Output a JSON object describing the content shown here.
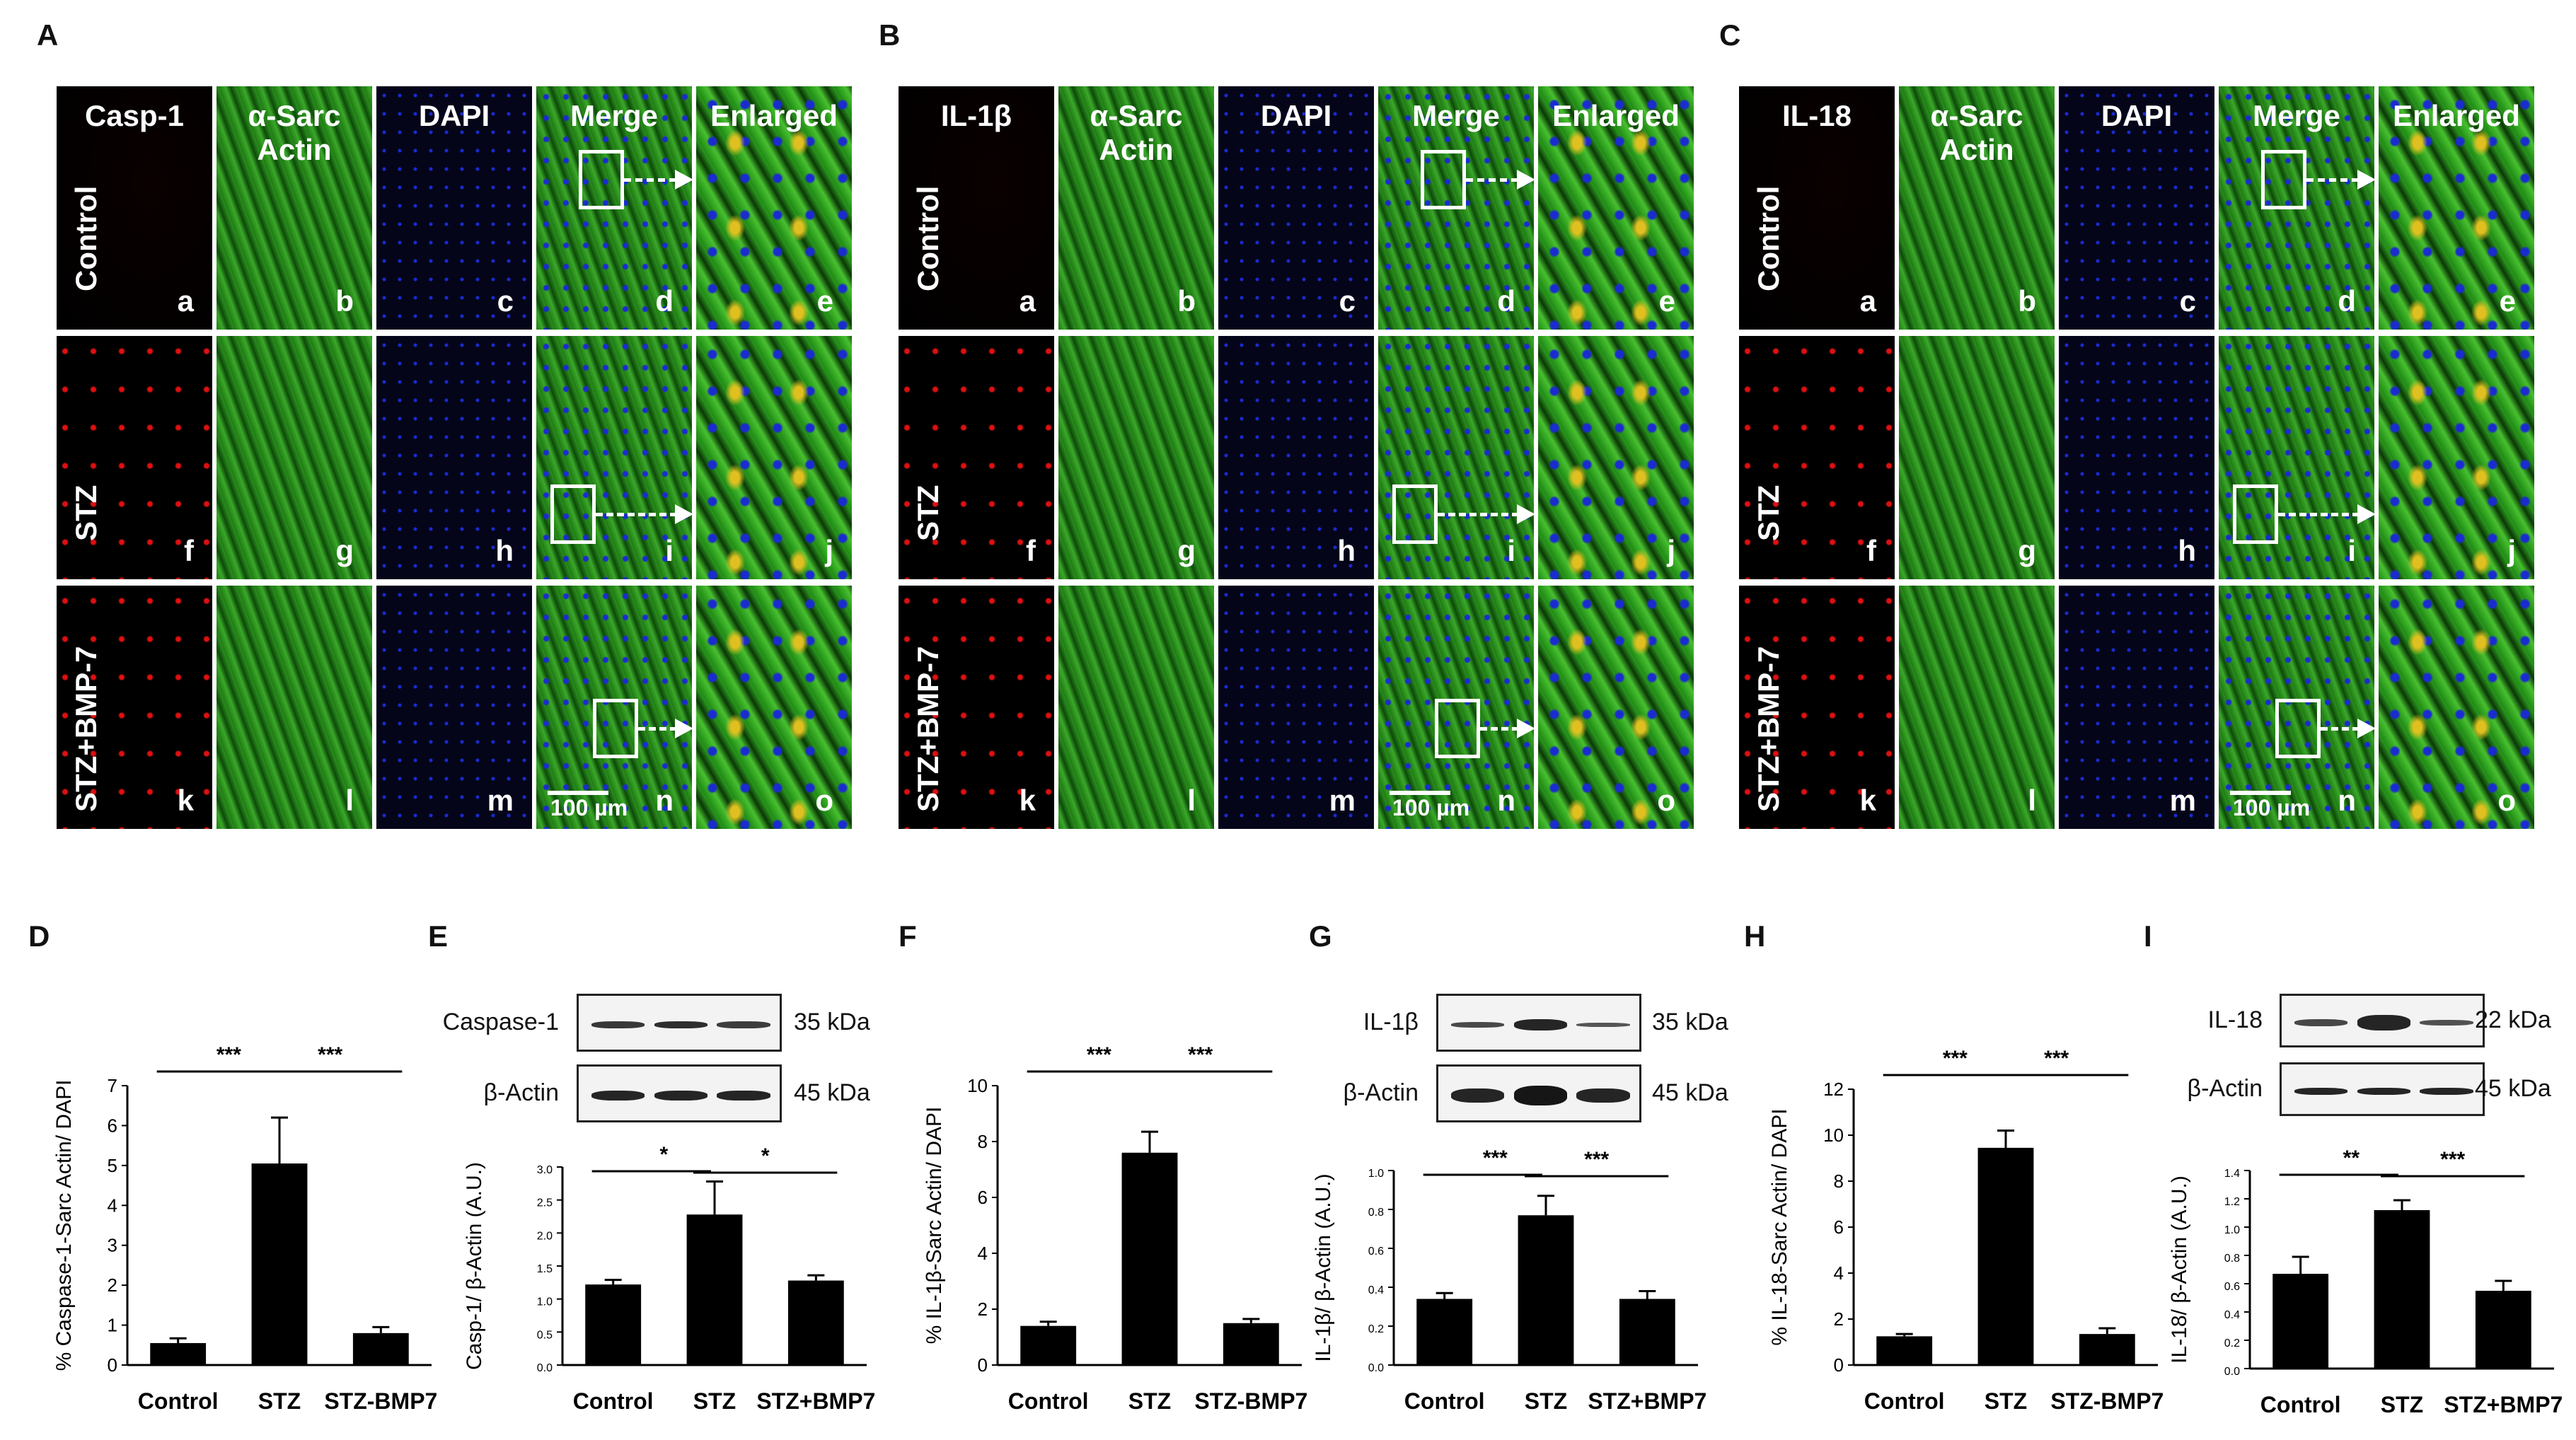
{
  "panels": {
    "A": {
      "letter": "A",
      "headers": [
        "Casp-1",
        "α-Sarc\nActin",
        "DAPI",
        "Merge",
        "Enlarged"
      ],
      "rows": [
        "Control",
        "STZ",
        "STZ+BMP-7"
      ],
      "tile_labels": [
        [
          "a",
          "b",
          "c",
          "d",
          "e"
        ],
        [
          "f",
          "g",
          "h",
          "i",
          "j"
        ],
        [
          "k",
          "l",
          "m",
          "n",
          "o"
        ]
      ],
      "scale_bar": "100 µm"
    },
    "B": {
      "letter": "B",
      "headers": [
        "IL-1β",
        "α-Sarc\nActin",
        "DAPI",
        "Merge",
        "Enlarged"
      ],
      "rows": [
        "Control",
        "STZ",
        "STZ+BMP-7"
      ],
      "tile_labels": [
        [
          "a",
          "b",
          "c",
          "d",
          "e"
        ],
        [
          "f",
          "g",
          "h",
          "i",
          "j"
        ],
        [
          "k",
          "l",
          "m",
          "n",
          "o"
        ]
      ],
      "scale_bar": "100 µm"
    },
    "C": {
      "letter": "C",
      "headers": [
        "IL-18",
        "α-Sarc\nActin",
        "DAPI",
        "Merge",
        "Enlarged"
      ],
      "rows": [
        "Control",
        "STZ",
        "STZ+BMP-7"
      ],
      "tile_labels": [
        [
          "a",
          "b",
          "c",
          "d",
          "e"
        ],
        [
          "f",
          "g",
          "h",
          "i",
          "j"
        ],
        [
          "k",
          "l",
          "m",
          "n",
          "o"
        ]
      ],
      "scale_bar": "100 µm"
    }
  },
  "colors": {
    "marker_red": "#e01010",
    "actin_green": "#2f9a1a",
    "dapi_blue": "#1a2bd0",
    "bar_fill": "#000000"
  },
  "blots": {
    "E": {
      "rows": [
        "Caspase-1",
        "β-Actin"
      ],
      "kda": [
        "35 kDa",
        "45 kDa"
      ]
    },
    "G": {
      "rows": [
        "IL-1β",
        "β-Actin"
      ],
      "kda": [
        "35 kDa",
        "45 kDa"
      ]
    },
    "I": {
      "rows": [
        "IL-18",
        "β-Actin"
      ],
      "kda": [
        "22 kDa",
        "45 kDa"
      ]
    }
  },
  "chart_data": [
    {
      "panel": "D",
      "type": "bar",
      "categories": [
        "Control",
        "STZ",
        "STZ-BMP7"
      ],
      "values": [
        0.55,
        5.05,
        0.8
      ],
      "errors": [
        0.12,
        1.15,
        0.15
      ],
      "ylabel": "% Caspase-1-Sarc Actin/ DAPI",
      "yticks": [
        "0",
        "1",
        "2",
        "3",
        "4",
        "5",
        "6",
        "7"
      ],
      "ylim": [
        0,
        7
      ],
      "significance": [
        {
          "from": 0,
          "to": 1,
          "label": "***"
        },
        {
          "from": 1,
          "to": 2,
          "label": "***"
        }
      ]
    },
    {
      "panel": "E",
      "type": "bar",
      "categories": [
        "Control",
        "STZ",
        "STZ+BMP7"
      ],
      "values": [
        1.22,
        2.28,
        1.28
      ],
      "errors": [
        0.07,
        0.5,
        0.08
      ],
      "ylabel": "Casp-1/ β-Actin (A.U.)",
      "yticks": [
        "0.0",
        "0.5",
        "1.0",
        "1.5",
        "2.0",
        "2.5",
        "3.0"
      ],
      "ylim": [
        0,
        3
      ],
      "significance": [
        {
          "from": 0,
          "to": 1,
          "label": "*"
        },
        {
          "from": 1,
          "to": 2,
          "label": "*"
        }
      ]
    },
    {
      "panel": "F",
      "type": "bar",
      "categories": [
        "Control",
        "STZ",
        "STZ-BMP7"
      ],
      "values": [
        1.4,
        7.6,
        1.5
      ],
      "errors": [
        0.15,
        0.75,
        0.15
      ],
      "ylabel": "% IL-1β-Sarc Actin/ DAPI",
      "yticks": [
        "0",
        "2",
        "4",
        "6",
        "8",
        "10"
      ],
      "ylim": [
        0,
        10
      ],
      "significance": [
        {
          "from": 0,
          "to": 1,
          "label": "***"
        },
        {
          "from": 1,
          "to": 2,
          "label": "***"
        }
      ]
    },
    {
      "panel": "G",
      "type": "bar",
      "categories": [
        "Control",
        "STZ",
        "STZ+BMP7"
      ],
      "values": [
        0.34,
        0.77,
        0.34
      ],
      "errors": [
        0.03,
        0.1,
        0.04
      ],
      "ylabel": "IL-1β/ β-Actin (A.U.)",
      "yticks": [
        "0.0",
        "0.2",
        "0.4",
        "0.6",
        "0.8",
        "1.0"
      ],
      "ylim": [
        0,
        1
      ],
      "significance": [
        {
          "from": 0,
          "to": 1,
          "label": "***"
        },
        {
          "from": 1,
          "to": 2,
          "label": "***"
        }
      ]
    },
    {
      "panel": "H",
      "type": "bar",
      "categories": [
        "Control",
        "STZ",
        "STZ-BMP7"
      ],
      "values": [
        1.25,
        9.45,
        1.35
      ],
      "errors": [
        0.1,
        0.75,
        0.25
      ],
      "ylabel": "% IL-18-Sarc Actin/ DAPI",
      "yticks": [
        "0",
        "2",
        "4",
        "6",
        "8",
        "10",
        "12"
      ],
      "ylim": [
        0,
        12
      ],
      "significance": [
        {
          "from": 0,
          "to": 1,
          "label": "***"
        },
        {
          "from": 1,
          "to": 2,
          "label": "***"
        }
      ]
    },
    {
      "panel": "I",
      "type": "bar",
      "categories": [
        "Control",
        "STZ",
        "STZ+BMP7"
      ],
      "values": [
        0.67,
        1.12,
        0.55
      ],
      "errors": [
        0.12,
        0.07,
        0.07
      ],
      "ylabel": "IL-18/ β-Actin (A.U.)",
      "yticks": [
        "0.0",
        "0.2",
        "0.4",
        "0.6",
        "0.8",
        "1.0",
        "1.2",
        "1.4"
      ],
      "ylim": [
        0,
        1.4
      ],
      "significance": [
        {
          "from": 0,
          "to": 1,
          "label": "**"
        },
        {
          "from": 1,
          "to": 2,
          "label": "***"
        }
      ]
    }
  ]
}
